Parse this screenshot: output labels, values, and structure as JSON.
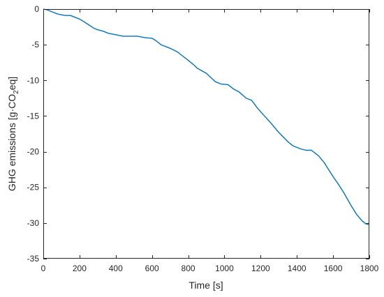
{
  "chart_data": {
    "type": "line",
    "xlabel": "Time [s]",
    "ylabel": {
      "prefix": "GHG emissions [g·CO",
      "subscript": "2",
      "suffix": "eq]"
    },
    "xlim": [
      0,
      1800
    ],
    "ylim": [
      -35,
      0
    ],
    "xticks": [
      0,
      200,
      400,
      600,
      800,
      1000,
      1200,
      1400,
      1600,
      1800
    ],
    "yticks": [
      -35,
      -30,
      -25,
      -20,
      -15,
      -10,
      -5,
      0
    ],
    "grid": false,
    "box": true,
    "line_color": "#0072BD",
    "series": [
      {
        "x": [
          0,
          20,
          40,
          60,
          80,
          100,
          120,
          150,
          180,
          200,
          220,
          250,
          280,
          300,
          330,
          360,
          400,
          440,
          480,
          520,
          560,
          600,
          620,
          650,
          700,
          740,
          770,
          800,
          830,
          850,
          900,
          950,
          980,
          1020,
          1050,
          1080,
          1120,
          1150,
          1180,
          1200,
          1250,
          1300,
          1350,
          1380,
          1420,
          1450,
          1480,
          1500,
          1520,
          1550,
          1580,
          1600,
          1630,
          1660,
          1700,
          1730,
          1760,
          1780,
          1790,
          1800
        ],
        "y": [
          0,
          -0.1,
          -0.3,
          -0.5,
          -0.7,
          -0.8,
          -0.9,
          -0.9,
          -1.2,
          -1.4,
          -1.7,
          -2.2,
          -2.7,
          -2.9,
          -3.1,
          -3.4,
          -3.6,
          -3.8,
          -3.8,
          -3.8,
          -4.0,
          -4.1,
          -4.4,
          -5.0,
          -5.5,
          -6.0,
          -6.6,
          -7.2,
          -7.8,
          -8.3,
          -9.0,
          -10.2,
          -10.5,
          -10.6,
          -11.2,
          -11.6,
          -12.5,
          -12.8,
          -13.8,
          -14.4,
          -15.8,
          -17.3,
          -18.6,
          -19.2,
          -19.6,
          -19.8,
          -19.8,
          -20.2,
          -20.6,
          -21.5,
          -22.7,
          -23.5,
          -24.6,
          -25.8,
          -27.6,
          -28.8,
          -29.7,
          -30.1,
          -30.2,
          -30.1
        ]
      }
    ]
  }
}
